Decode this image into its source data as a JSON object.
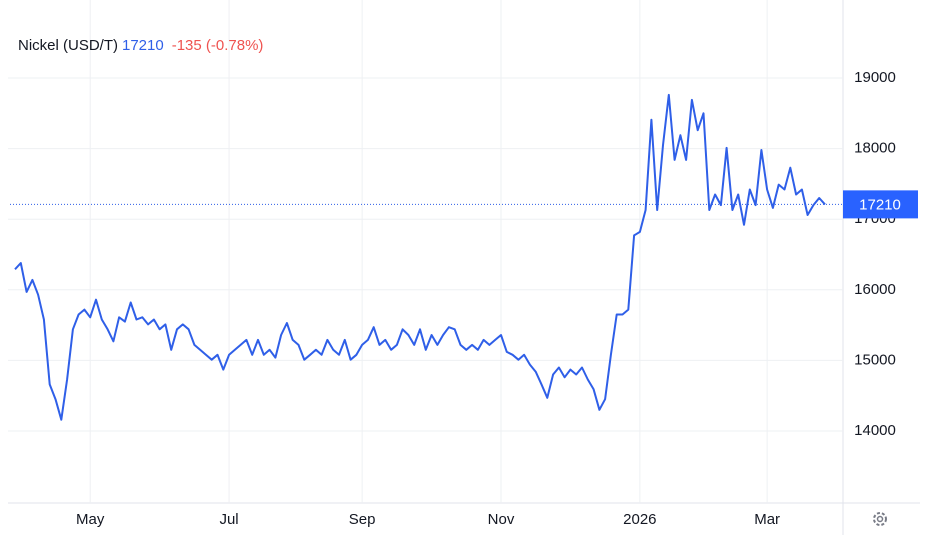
{
  "chart_data": {
    "type": "line",
    "title": "Nickel (USD/T)",
    "last_price": 17210,
    "change": "-135 (-0.78%)",
    "series": [
      {
        "name": "Nickel",
        "color": "#2f5fe8",
        "values": [
          16290,
          16380,
          15970,
          16140,
          15930,
          15580,
          14660,
          14450,
          14160,
          14730,
          15440,
          15650,
          15720,
          15610,
          15860,
          15580,
          15440,
          15270,
          15610,
          15550,
          15820,
          15580,
          15610,
          15510,
          15580,
          15440,
          15510,
          15150,
          15440,
          15510,
          15440,
          15220,
          15150,
          15080,
          15010,
          15080,
          14870,
          15080,
          15150,
          15220,
          15290,
          15080,
          15290,
          15080,
          15150,
          15040,
          15360,
          15530,
          15290,
          15220,
          15010,
          15080,
          15150,
          15080,
          15290,
          15150,
          15080,
          15290,
          15010,
          15080,
          15220,
          15290,
          15470,
          15220,
          15290,
          15150,
          15220,
          15440,
          15360,
          15220,
          15440,
          15150,
          15360,
          15220,
          15360,
          15470,
          15440,
          15220,
          15150,
          15220,
          15150,
          15290,
          15220,
          15290,
          15360,
          15120,
          15080,
          15010,
          15080,
          14940,
          14840,
          14660,
          14470,
          14800,
          14900,
          14760,
          14870,
          14800,
          14900,
          14730,
          14590,
          14300,
          14450,
          15080,
          15650,
          15650,
          15720,
          16770,
          16820,
          17130,
          18410,
          17130,
          18050,
          18760,
          17840,
          18190,
          17840,
          18690,
          18260,
          18500,
          17130,
          17350,
          17200,
          18010,
          17130,
          17350,
          16920,
          17420,
          17200,
          17980,
          17420,
          17160,
          17490,
          17420,
          17730,
          17350,
          17420,
          17060,
          17200,
          17300,
          17210
        ]
      }
    ],
    "xlim": [
      0,
      140
    ],
    "xticks": [
      {
        "value": 13,
        "label": "May"
      },
      {
        "value": 37,
        "label": "Jul"
      },
      {
        "value": 60,
        "label": "Sep"
      },
      {
        "value": 84,
        "label": "Nov"
      },
      {
        "value": 108,
        "label": "2026"
      },
      {
        "value": 130,
        "label": "Mar"
      }
    ],
    "ylim": [
      13000,
      20000
    ],
    "yticks": [
      14000,
      15000,
      16000,
      17000,
      18000,
      19000
    ],
    "grid": true
  }
}
